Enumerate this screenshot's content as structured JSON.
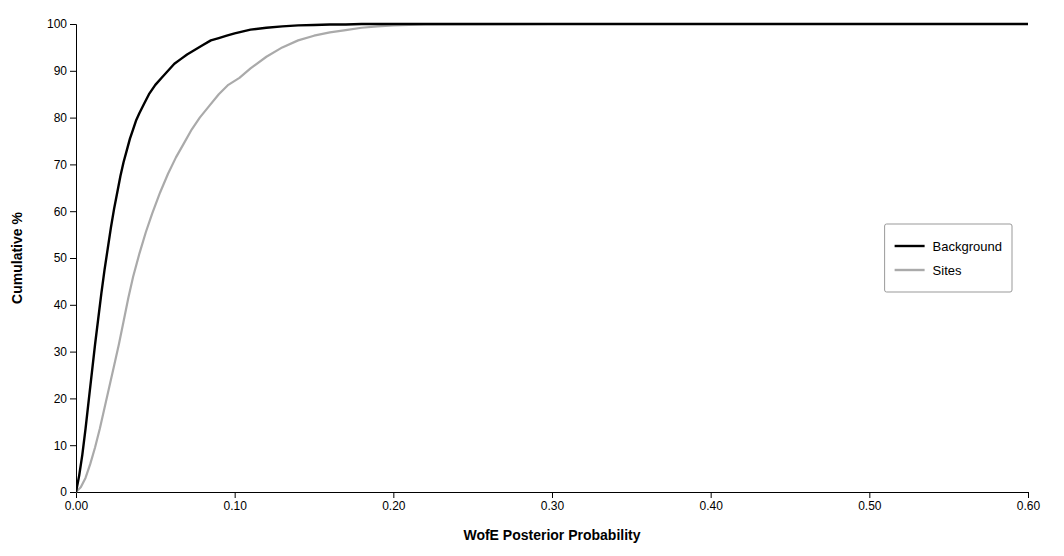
{
  "chart_data": {
    "type": "line",
    "xlabel": "WofE Posterior Probability",
    "ylabel": "Cumulative %",
    "xlim": [
      0.0,
      0.6
    ],
    "ylim": [
      0,
      100
    ],
    "xticks": [
      {
        "value": 0.0,
        "label": "0.00"
      },
      {
        "value": 0.1,
        "label": "0.10"
      },
      {
        "value": 0.2,
        "label": "0.20"
      },
      {
        "value": 0.3,
        "label": "0.30"
      },
      {
        "value": 0.4,
        "label": "0.40"
      },
      {
        "value": 0.5,
        "label": "0.50"
      },
      {
        "value": 0.6,
        "label": "0.60"
      }
    ],
    "yticks": [
      0,
      10,
      20,
      30,
      40,
      50,
      60,
      70,
      80,
      90,
      100
    ],
    "grid": false,
    "legend": "right",
    "series": [
      {
        "name": "Background",
        "color": "#000000",
        "x": [
          0.0,
          0.002,
          0.004,
          0.006,
          0.008,
          0.01,
          0.012,
          0.014,
          0.016,
          0.018,
          0.02,
          0.022,
          0.024,
          0.026,
          0.028,
          0.03,
          0.032,
          0.034,
          0.036,
          0.038,
          0.04,
          0.043,
          0.046,
          0.05,
          0.054,
          0.058,
          0.062,
          0.066,
          0.07,
          0.075,
          0.08,
          0.085,
          0.09,
          0.095,
          0.1,
          0.11,
          0.12,
          0.13,
          0.14,
          0.15,
          0.16,
          0.17,
          0.18,
          0.19,
          0.2,
          0.25,
          0.4,
          0.6
        ],
        "values": [
          0.0,
          3.5,
          8.0,
          13.5,
          19.5,
          25.5,
          31.5,
          37.0,
          42.5,
          47.5,
          52.0,
          56.5,
          60.5,
          64.0,
          67.5,
          70.5,
          73.0,
          75.5,
          77.5,
          79.5,
          81.0,
          83.0,
          85.0,
          87.0,
          88.5,
          90.0,
          91.5,
          92.5,
          93.5,
          94.5,
          95.5,
          96.5,
          97.0,
          97.5,
          98.0,
          98.8,
          99.2,
          99.5,
          99.7,
          99.8,
          99.9,
          99.9,
          100.0,
          100.0,
          100.0,
          100.0,
          100.0,
          100.0
        ]
      },
      {
        "name": "Sites",
        "color": "#aaaaaa",
        "x": [
          0.0,
          0.003,
          0.006,
          0.009,
          0.012,
          0.015,
          0.018,
          0.021,
          0.024,
          0.027,
          0.03,
          0.033,
          0.036,
          0.04,
          0.044,
          0.048,
          0.053,
          0.058,
          0.063,
          0.068,
          0.073,
          0.078,
          0.084,
          0.09,
          0.096,
          0.103,
          0.11,
          0.12,
          0.13,
          0.14,
          0.15,
          0.16,
          0.17,
          0.18,
          0.19,
          0.2,
          0.22,
          0.3,
          0.6
        ],
        "values": [
          0.0,
          1.0,
          3.0,
          6.0,
          9.5,
          13.5,
          18.0,
          22.5,
          27.0,
          31.5,
          36.5,
          41.5,
          46.0,
          51.0,
          55.5,
          59.5,
          64.0,
          68.0,
          71.5,
          74.5,
          77.5,
          80.0,
          82.5,
          85.0,
          87.0,
          88.5,
          90.5,
          93.0,
          95.0,
          96.5,
          97.5,
          98.2,
          98.7,
          99.2,
          99.5,
          99.7,
          99.9,
          100.0,
          100.0
        ]
      }
    ]
  }
}
